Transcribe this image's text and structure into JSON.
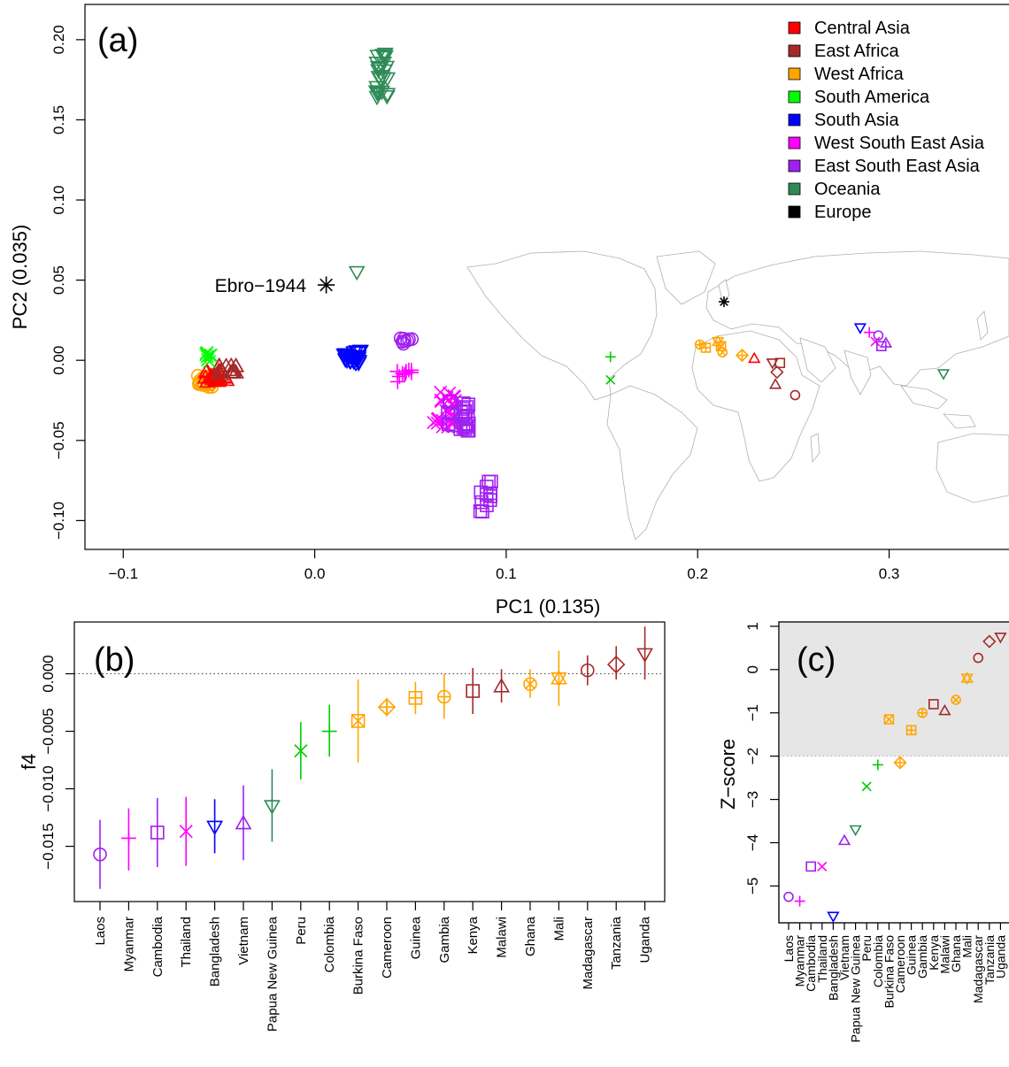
{
  "chart_data": [
    {
      "panel": "(a)",
      "type": "scatter",
      "xlabel": "PC1 (0.135)",
      "ylabel": "PC2 (0.035)",
      "xlim": [
        -0.12,
        0.37
      ],
      "ylim": [
        -0.118,
        0.222
      ],
      "xticks": [
        -0.1,
        0.0,
        0.1,
        0.2,
        0.3
      ],
      "xtick_labels": [
        "−0.1",
        "0.0",
        "0.1",
        "0.2",
        "0.3"
      ],
      "yticks": [
        -0.1,
        -0.05,
        0.0,
        0.05,
        0.1,
        0.15,
        0.2
      ],
      "ytick_labels": [
        "−0.10",
        "−0.05",
        "0.00",
        "0.05",
        "0.10",
        "0.15",
        "0.20"
      ],
      "legend": [
        {
          "label": "Central Asia",
          "color": "#ff0000"
        },
        {
          "label": "East Africa",
          "color": "#a52a2a"
        },
        {
          "label": "West Africa",
          "color": "#ffa500"
        },
        {
          "label": "South America",
          "color": "#00ff00"
        },
        {
          "label": "South Asia",
          "color": "#0000ff"
        },
        {
          "label": "West South East Asia",
          "color": "#ff00ff"
        },
        {
          "label": "East South East Asia",
          "color": "#a020f0"
        },
        {
          "label": "Oceania",
          "color": "#2e8b57"
        },
        {
          "label": "Europe",
          "color": "#000000"
        }
      ],
      "legend_position": "top-right",
      "annotation": {
        "label": "Ebro−1944",
        "x": 0.004,
        "y": 0.047
      },
      "clusters": [
        {
          "region": "West Africa",
          "shape": "circle",
          "x": -0.057,
          "y": -0.013
        },
        {
          "region": "Central Asia",
          "shape": "triangle",
          "x": -0.052,
          "y": -0.01
        },
        {
          "region": "East Africa",
          "shape": "triangle",
          "x": -0.045,
          "y": -0.006
        },
        {
          "region": "South America",
          "shape": "x",
          "x": -0.055,
          "y": 0.002
        },
        {
          "region": "South Asia",
          "shape": "triangle-down",
          "x": 0.019,
          "y": 0.002
        },
        {
          "region": "Oceania",
          "shape": "triangle-down",
          "x": 0.035,
          "y": 0.178
        },
        {
          "region": "Oceania",
          "shape": "triangle-down",
          "x": 0.022,
          "y": 0.055
        },
        {
          "region": "Europe",
          "shape": "asterisk",
          "x": 0.006,
          "y": 0.047
        },
        {
          "region": "East South East Asia",
          "shape": "circle",
          "x": 0.047,
          "y": 0.012
        },
        {
          "region": "West South East Asia",
          "shape": "plus",
          "x": 0.045,
          "y": -0.01
        },
        {
          "region": "West South East Asia",
          "shape": "x",
          "x": 0.068,
          "y": -0.03
        },
        {
          "region": "East South East Asia",
          "shape": "square",
          "x": 0.075,
          "y": -0.035
        },
        {
          "region": "East South East Asia",
          "shape": "square",
          "x": 0.09,
          "y": -0.085
        }
      ]
    },
    {
      "panel": "(b)",
      "type": "scatter",
      "ylabel": "f4",
      "ylim": [
        -0.0198,
        0.0045
      ],
      "yticks": [
        0.0,
        -0.005,
        -0.01,
        -0.015
      ],
      "ytick_labels": [
        "0.000",
        "−0.005",
        "−0.010",
        "−0.015"
      ],
      "reference_line": 0.0,
      "categories": [
        "Laos",
        "Myanmar",
        "Cambodia",
        "Thailand",
        "Bangladesh",
        "Vietnam",
        "Papua New Guinea",
        "Peru",
        "Colombia",
        "Burkina Faso",
        "Cameroon",
        "Guinea",
        "Gambia",
        "Kenya",
        "Malawi",
        "Ghana",
        "Mali",
        "Madagascar",
        "Tanzania",
        "Uganda"
      ],
      "values": [
        -0.0157,
        -0.0143,
        -0.0138,
        -0.0137,
        -0.0133,
        -0.013,
        -0.0115,
        -0.0067,
        -0.005,
        -0.0041,
        -0.0029,
        -0.0021,
        -0.002,
        -0.0015,
        -0.0011,
        -0.0009,
        -0.0004,
        0.0003,
        0.0008,
        0.0017
      ],
      "lower": [
        -0.0187,
        -0.0171,
        -0.0168,
        -0.0167,
        -0.0156,
        -0.0162,
        -0.0146,
        -0.0092,
        -0.0072,
        -0.0077,
        -0.0037,
        -0.0035,
        -0.0039,
        -0.0035,
        -0.0025,
        -0.0021,
        -0.0028,
        -0.001,
        -0.0005,
        -0.0005
      ],
      "upper": [
        -0.0127,
        -0.0117,
        -0.0108,
        -0.0107,
        -0.0109,
        -0.0097,
        -0.0083,
        -0.0042,
        -0.0027,
        -0.0005,
        -0.0021,
        -0.0007,
        0.0,
        0.0005,
        0.0004,
        0.0004,
        0.002,
        0.0016,
        0.0024,
        0.0041
      ]
    },
    {
      "panel": "(c)",
      "type": "scatter",
      "ylabel": "Z−score",
      "ylim": [
        -5.85,
        1.1
      ],
      "yticks": [
        1,
        0,
        -1,
        -2,
        -3,
        -4,
        -5
      ],
      "ytick_labels": [
        "1",
        "0",
        "−1",
        "−2",
        "−3",
        "−4",
        "−5"
      ],
      "shaded_above": -2,
      "categories": [
        "Laos",
        "Myanmar",
        "Cambodia",
        "Thailand",
        "Bangladesh",
        "Vietnam",
        "Papua New Guinea",
        "Peru",
        "Colombia",
        "Burkina Faso",
        "Cameroon",
        "Guinea",
        "Gambia",
        "Kenya",
        "Malawi",
        "Ghana",
        "Mali",
        "Madagascar",
        "Tanzania",
        "Uganda"
      ],
      "values": [
        -5.25,
        -5.35,
        -4.55,
        -4.55,
        -5.7,
        -3.95,
        -3.7,
        -2.7,
        -2.2,
        -1.15,
        -2.15,
        -1.4,
        -1.0,
        -0.8,
        -0.95,
        -0.7,
        -0.2,
        0.27,
        0.65,
        0.75
      ]
    }
  ],
  "category_styles": [
    {
      "shape": "circle",
      "color": "#a020f0"
    },
    {
      "shape": "plus",
      "color": "#ff00ff"
    },
    {
      "shape": "square",
      "color": "#a020f0"
    },
    {
      "shape": "x",
      "color": "#ff00ff"
    },
    {
      "shape": "triangle-down",
      "color": "#0000ff"
    },
    {
      "shape": "triangle",
      "color": "#a020f0"
    },
    {
      "shape": "triangle-down",
      "color": "#2e8b57"
    },
    {
      "shape": "x",
      "color": "#00cc00"
    },
    {
      "shape": "plus",
      "color": "#00cc00"
    },
    {
      "shape": "square-x",
      "color": "#ffa500"
    },
    {
      "shape": "diamond-plus",
      "color": "#ffa500"
    },
    {
      "shape": "square-plus",
      "color": "#ffa500"
    },
    {
      "shape": "circle-plus",
      "color": "#ffa500"
    },
    {
      "shape": "square",
      "color": "#a52a2a"
    },
    {
      "shape": "triangle",
      "color": "#a52a2a"
    },
    {
      "shape": "circle-x",
      "color": "#ffa500"
    },
    {
      "shape": "star",
      "color": "#ffa500"
    },
    {
      "shape": "circle",
      "color": "#a52a2a"
    },
    {
      "shape": "diamond",
      "color": "#a52a2a"
    },
    {
      "shape": "triangle-down",
      "color": "#a52a2a"
    }
  ],
  "map": {
    "markers": [
      {
        "shape": "plus",
        "color": "#00cc00",
        "lon": -75,
        "lat": 5
      },
      {
        "shape": "x",
        "color": "#00cc00",
        "lon": -75,
        "lat": -10
      },
      {
        "shape": "square-plus",
        "color": "#ffa500",
        "lon": -12,
        "lat": 11
      },
      {
        "shape": "circle-plus",
        "color": "#ffa500",
        "lon": -16,
        "lat": 13
      },
      {
        "shape": "star",
        "color": "#ffa500",
        "lon": -4,
        "lat": 15
      },
      {
        "shape": "square-x",
        "color": "#ffa500",
        "lon": -2,
        "lat": 12
      },
      {
        "shape": "circle-x",
        "color": "#ffa500",
        "lon": -1,
        "lat": 8
      },
      {
        "shape": "diamond-plus",
        "color": "#ffa500",
        "lon": 12,
        "lat": 6
      },
      {
        "shape": "triangle",
        "color": "#ff0000",
        "lon": 20,
        "lat": 4
      },
      {
        "shape": "triangle-down",
        "color": "#a52a2a",
        "lon": 32,
        "lat": 1
      },
      {
        "shape": "square",
        "color": "#a52a2a",
        "lon": 37,
        "lat": 1
      },
      {
        "shape": "diamond",
        "color": "#a52a2a",
        "lon": 35,
        "lat": -5
      },
      {
        "shape": "triangle",
        "color": "#a52a2a",
        "lon": 34,
        "lat": -13
      },
      {
        "shape": "circle",
        "color": "#a52a2a",
        "lon": 47,
        "lat": -20
      },
      {
        "shape": "asterisk",
        "color": "#000000",
        "lon": 0,
        "lat": 41
      },
      {
        "shape": "triangle-down",
        "color": "#0000ff",
        "lon": 90,
        "lat": 24
      },
      {
        "shape": "plus",
        "color": "#ff00ff",
        "lon": 96,
        "lat": 21
      },
      {
        "shape": "circle",
        "color": "#a020f0",
        "lon": 102,
        "lat": 19
      },
      {
        "shape": "x",
        "color": "#ff00ff",
        "lon": 100,
        "lat": 15
      },
      {
        "shape": "square",
        "color": "#a020f0",
        "lon": 104,
        "lat": 12
      },
      {
        "shape": "triangle",
        "color": "#a020f0",
        "lon": 107,
        "lat": 14
      },
      {
        "shape": "triangle-down",
        "color": "#2e8b57",
        "lon": 145,
        "lat": -6
      }
    ]
  }
}
